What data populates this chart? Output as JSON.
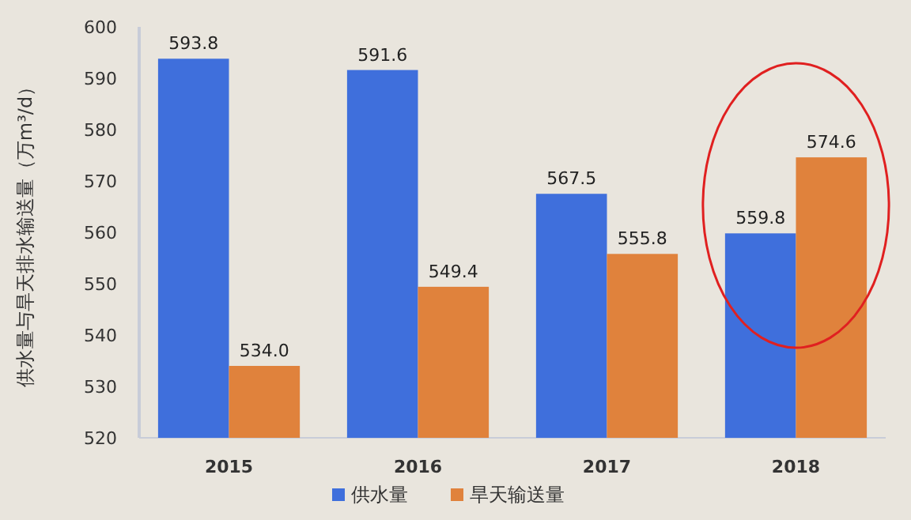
{
  "chart_data": {
    "type": "bar",
    "ylabel": "供水量与旱天排水输送量（万m³/d）",
    "categories": [
      "2015",
      "2016",
      "2017",
      "2018"
    ],
    "series": [
      {
        "name": "供水量",
        "color": "#3f6fdc",
        "values": [
          593.8,
          591.6,
          567.5,
          559.8
        ]
      },
      {
        "name": "旱天输送量",
        "color": "#e0823c",
        "values": [
          534.0,
          549.4,
          555.8,
          574.6
        ]
      }
    ],
    "value_labels": [
      [
        "593.8",
        "591.6",
        "567.5",
        "559.8"
      ],
      [
        "534.0",
        "549.4",
        "555.8",
        "574.6"
      ]
    ],
    "ylim": [
      520,
      600
    ],
    "yticks": [
      520,
      530,
      540,
      550,
      560,
      570,
      580,
      590,
      600
    ],
    "grid": false,
    "legend": "bottom"
  }
}
